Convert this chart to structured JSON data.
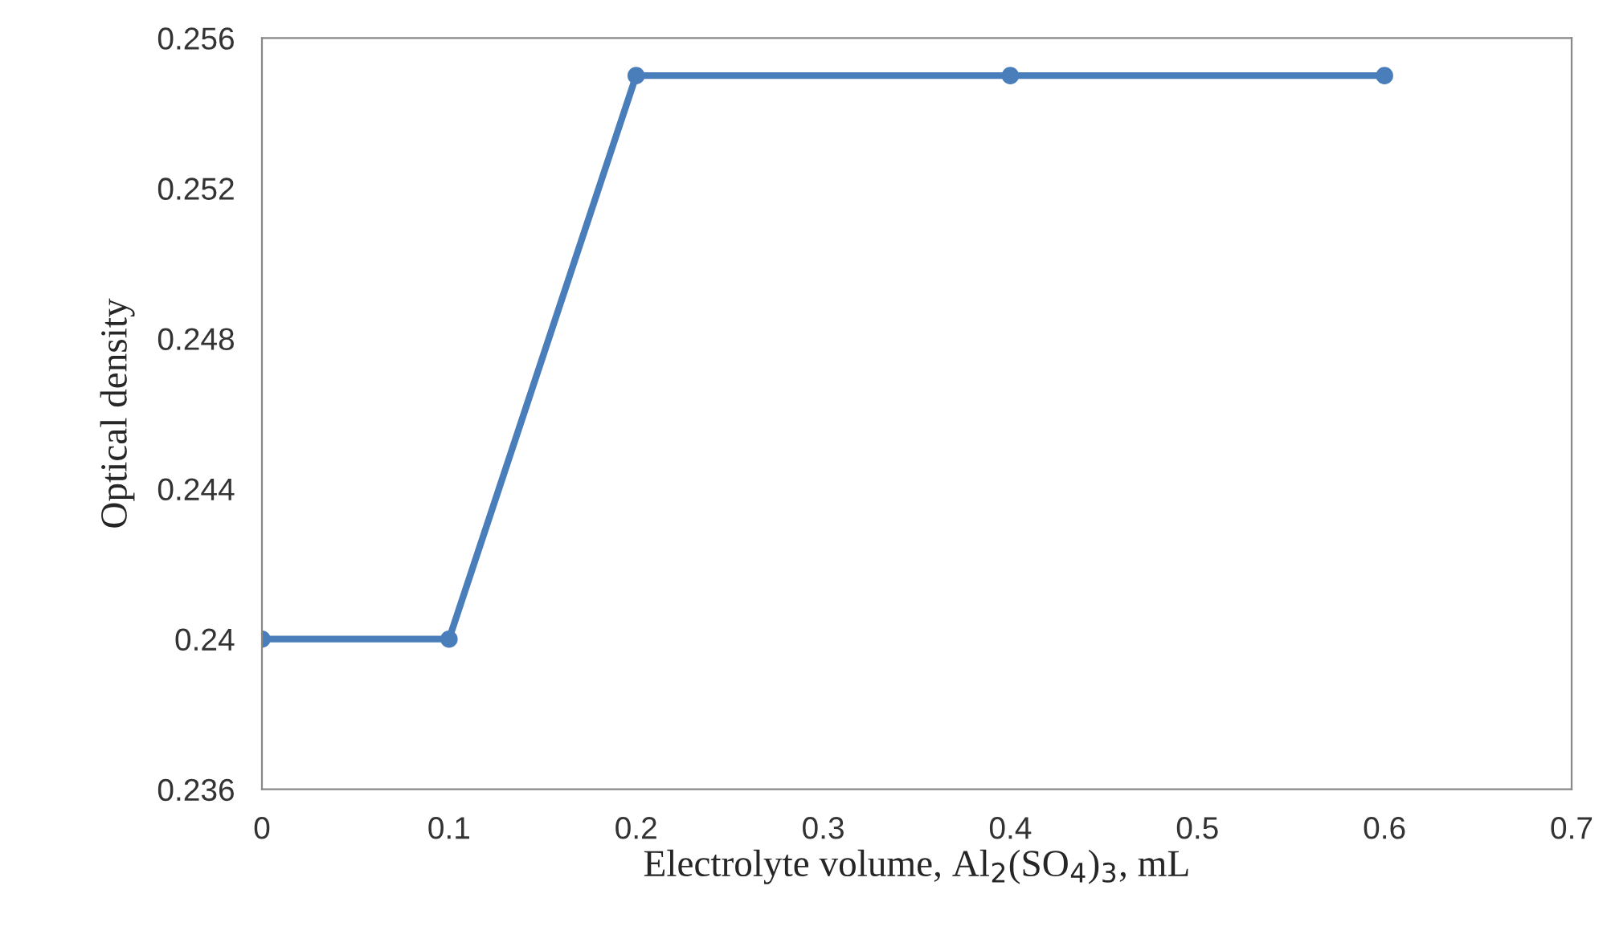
{
  "chart_data": {
    "type": "line",
    "xlabel": "Electrolyte volume, Al$_{2}$(SO$_{4}$)$_{3}$, mL",
    "ylabel": "Optical density",
    "x": [
      0,
      0.1,
      0.2,
      0.4,
      0.6
    ],
    "series": [
      {
        "color": "#4a7ebb",
        "values": [
          0.24,
          0.24,
          0.255,
          0.255,
          0.255
        ]
      }
    ],
    "xlim": [
      0,
      0.7
    ],
    "xticks": [
      0,
      0.1,
      0.2,
      0.3,
      0.4,
      0.5,
      0.6,
      0.7
    ],
    "ylim": [
      0.236,
      0.256
    ],
    "yticks": [
      0.236,
      0.24,
      0.244,
      0.248,
      0.252,
      0.256
    ],
    "marker": "circle",
    "line_style": "solid"
  }
}
